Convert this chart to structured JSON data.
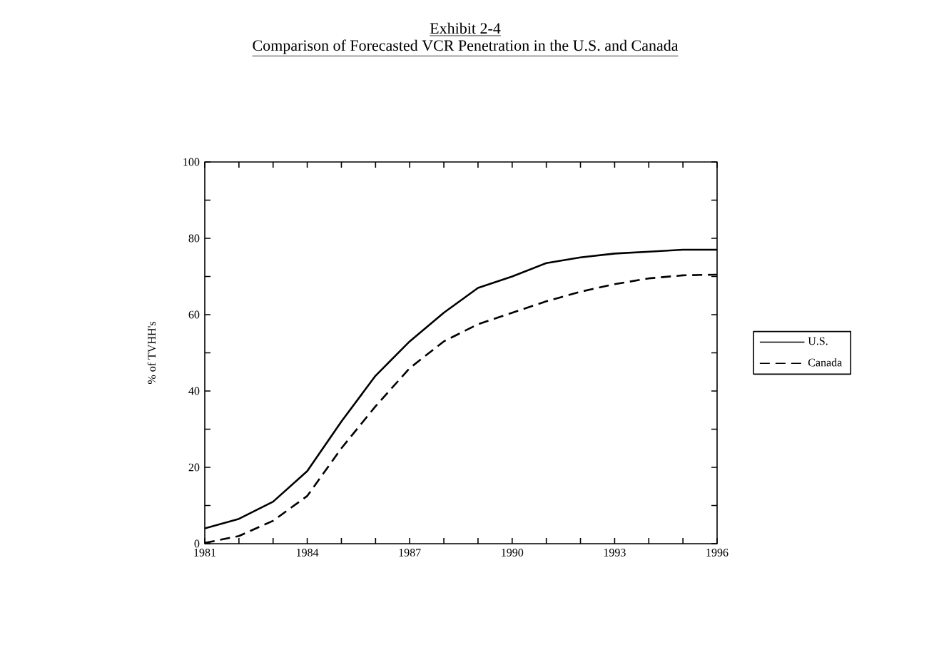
{
  "chart_data": {
    "type": "line",
    "title": "Exhibit 2-4",
    "subtitle": "Comparison of Forecasted VCR Penetration in the U.S. and Canada",
    "ylabel": "% of TVHH's",
    "x": [
      1981,
      1982,
      1983,
      1984,
      1985,
      1986,
      1987,
      1988,
      1989,
      1990,
      1991,
      1992,
      1993,
      1994,
      1995,
      1996
    ],
    "series": [
      {
        "name": "U.S.",
        "color": "#000000",
        "line_style": "solid",
        "values": [
          4,
          6.5,
          11,
          19,
          32,
          44,
          53,
          60.5,
          67,
          70,
          73.5,
          75,
          76,
          76.5,
          77,
          77
        ]
      },
      {
        "name": "Canada",
        "color": "#000000",
        "line_style": "dashed",
        "values": [
          0.2,
          2,
          6,
          12.5,
          25,
          36,
          46,
          53,
          57.5,
          60.5,
          63.5,
          66,
          68,
          69.5,
          70.3,
          70.5
        ]
      }
    ],
    "xlim": [
      1981,
      1996
    ],
    "ylim": [
      0,
      100
    ],
    "xticks": [
      1981,
      {
        "value": 1982,
        "label": null
      },
      {
        "value": 1983,
        "label": null
      },
      1984,
      {
        "value": 1985,
        "label": null
      },
      {
        "value": 1986,
        "label": null
      },
      1987,
      {
        "value": 1988,
        "label": null
      },
      {
        "value": 1989,
        "label": null
      },
      1990,
      {
        "value": 1991,
        "label": null
      },
      {
        "value": 1992,
        "label": null
      },
      1993,
      {
        "value": 1994,
        "label": null
      },
      {
        "value": 1995,
        "label": null
      },
      1996
    ],
    "yticks": [
      0,
      {
        "value": 10,
        "label": null
      },
      20,
      {
        "value": 30,
        "label": null
      },
      40,
      {
        "value": 50,
        "label": null
      },
      60,
      {
        "value": 70,
        "label": null
      },
      80,
      {
        "value": 90,
        "label": null
      },
      100
    ],
    "grid": false,
    "legend": "right",
    "marker": "none"
  }
}
